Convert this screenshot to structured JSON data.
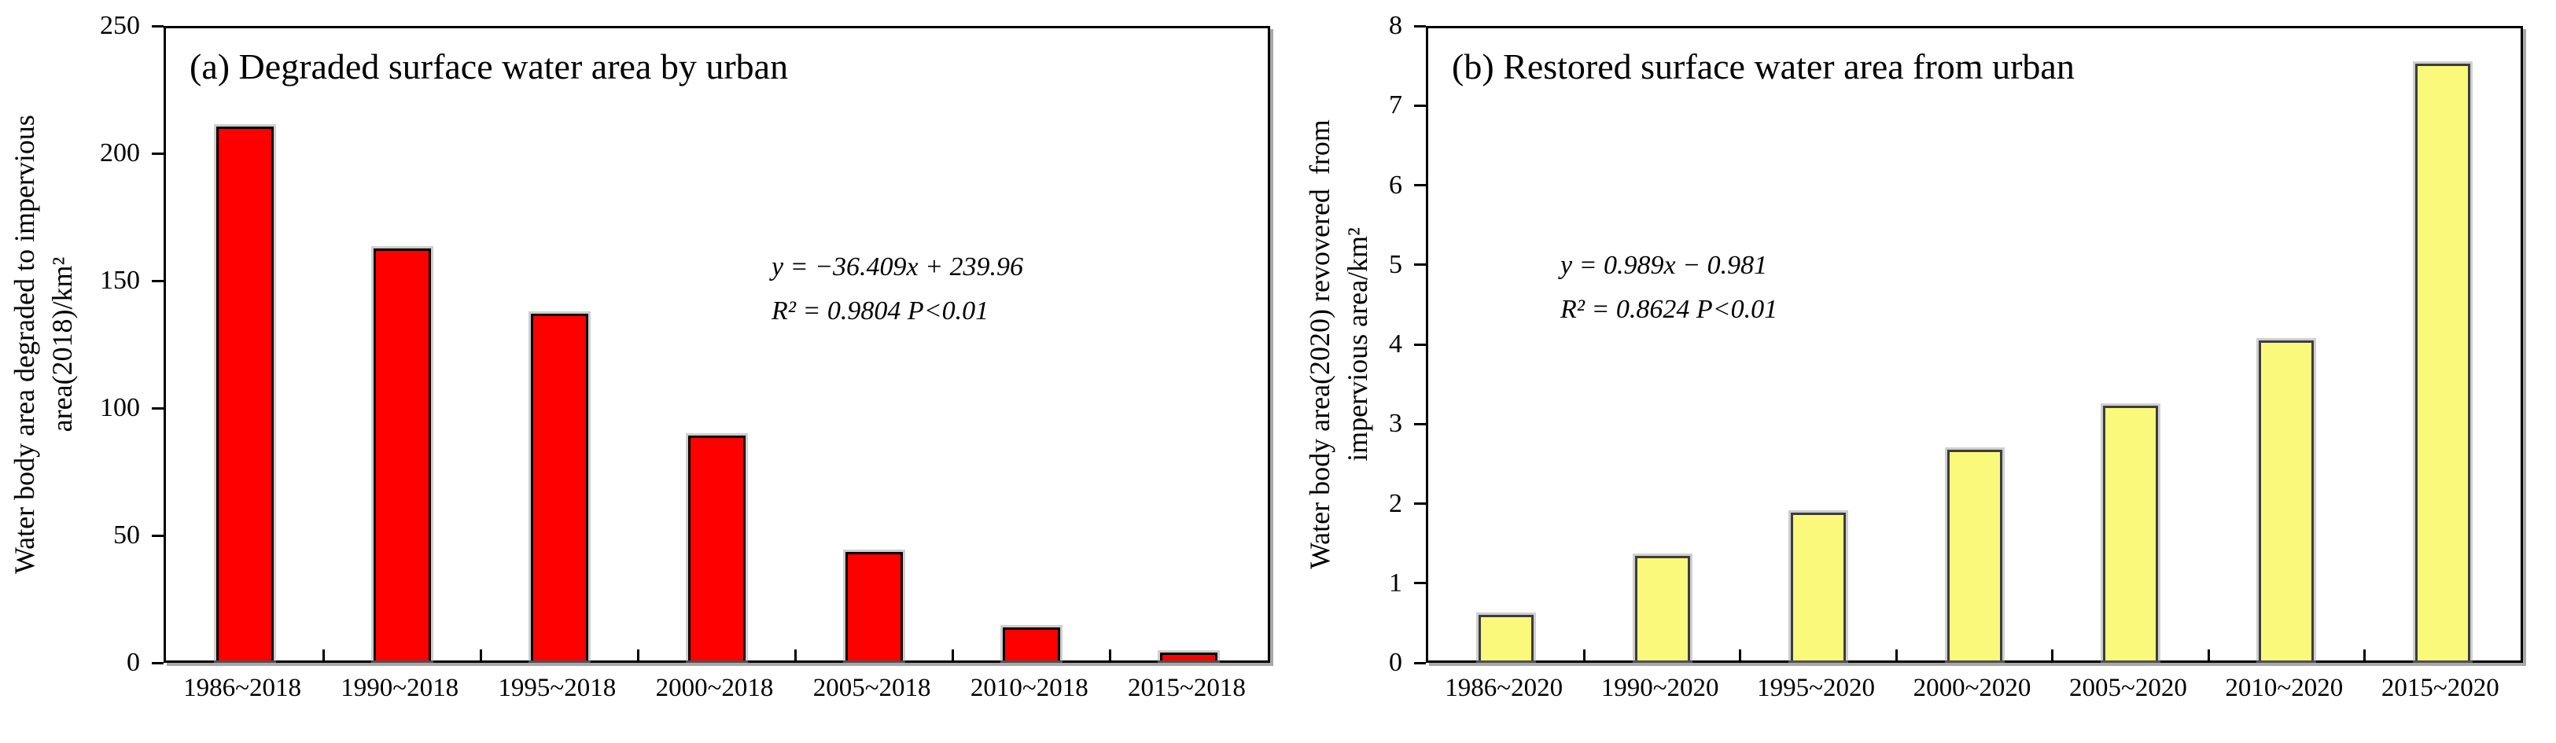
{
  "figure_title": "Degraded and restored surface water area bar charts",
  "colors": {
    "panel_a_bar_fill": "#ff0000",
    "panel_a_bar_stroke": "#000000",
    "panel_b_bar_fill": "#fbf97b",
    "panel_b_bar_stroke": "#3d3d3d",
    "axis": "#000000",
    "frame_shadow": "#a8a8a8"
  },
  "chart_data": [
    {
      "type": "bar",
      "title": "(a) Degraded surface water area by urban",
      "ylabel": "Water body area degraded to impervious area(2018)/km²",
      "ylabel_lines": [
        "Water body area degraded to impervious",
        "area(2018)/km²"
      ],
      "xlabel": "",
      "categories": [
        "1986~2018",
        "1990~2018",
        "1995~2018",
        "2000~2018",
        "2005~2018",
        "2010~2018",
        "2015~2018"
      ],
      "values": [
        211,
        163,
        137,
        89,
        43,
        13,
        3
      ],
      "ylim": [
        0,
        250
      ],
      "yticks": [
        0,
        50,
        100,
        150,
        200,
        250
      ],
      "grid": false,
      "legend": "none",
      "annotation_lines": [
        "y = −36.409x + 239.96",
        "R² = 0.9804 P<0.01"
      ],
      "bar_fill": "#ff0000",
      "bar_stroke": "#000000"
    },
    {
      "type": "bar",
      "title": "(b) Restored surface water area from urban",
      "ylabel": "Water body area(2020) revovered from impervious area/km²",
      "ylabel_lines": [
        "Water body area(2020) revovered  from",
        "impervious area/km²"
      ],
      "xlabel": "",
      "categories": [
        "1986~2020",
        "1990~2020",
        "1995~2020",
        "2000~2020",
        "2005~2020",
        "2010~2020",
        "2015~2020"
      ],
      "values": [
        0.58,
        1.32,
        1.87,
        2.67,
        3.22,
        4.05,
        7.55
      ],
      "ylim": [
        0,
        8
      ],
      "yticks": [
        0,
        1,
        2,
        3,
        4,
        5,
        6,
        7,
        8
      ],
      "grid": false,
      "legend": "none",
      "annotation_lines": [
        "y = 0.989x − 0.981",
        "R² = 0.8624 P<0.01"
      ],
      "bar_fill": "#fbf97b",
      "bar_stroke": "#3d3d3d"
    }
  ]
}
